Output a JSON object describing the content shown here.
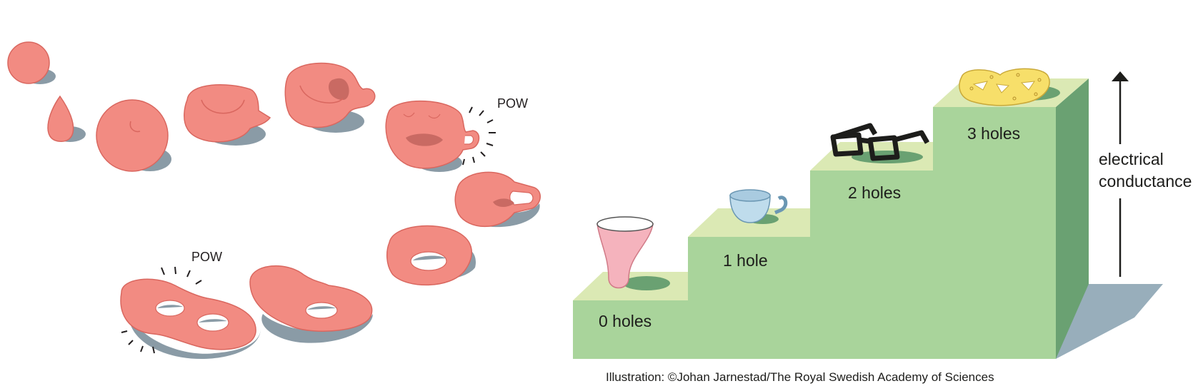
{
  "morph_sequence": {
    "pow_top": "POW",
    "pow_bottom": "POW"
  },
  "staircase": {
    "steps": [
      {
        "label": "0 holes",
        "object": "vase-icon"
      },
      {
        "label": "1 hole",
        "object": "cup-icon"
      },
      {
        "label": "2 holes",
        "object": "glasses-icon"
      },
      {
        "label": "3 holes",
        "object": "pretzel-icon"
      }
    ]
  },
  "axis": {
    "label_line1": "electrical",
    "label_line2": "conductance"
  },
  "credit": "Illustration: ©Johan Jarnestad/The Royal Swedish Academy of Sciences",
  "colors": {
    "blob": "#f28b82",
    "blob_shadow": "#8a9ba6",
    "step_front": "#a9d49b",
    "step_top": "#dbe9b4",
    "step_side": "#6aa172",
    "object_shadow": "#6aa172",
    "floor_shadow": "#98aebb"
  }
}
